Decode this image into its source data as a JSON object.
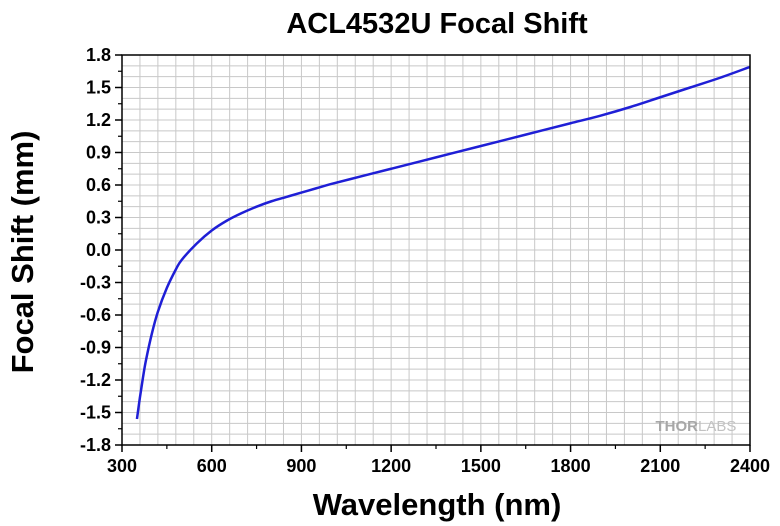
{
  "chart_data": {
    "type": "line",
    "title": "ACL4532U Focal Shift",
    "xlabel": "Wavelength (nm)",
    "ylabel": "Focal Shift (mm)",
    "xlim": [
      300,
      2400
    ],
    "ylim": [
      -1.8,
      1.8
    ],
    "xticks": [
      300,
      600,
      900,
      1200,
      1500,
      1800,
      2100,
      2400
    ],
    "yticks": [
      -1.8,
      -1.5,
      -1.2,
      -0.9,
      -0.6,
      -0.3,
      0.0,
      0.3,
      0.6,
      0.9,
      1.2,
      1.5,
      1.8
    ],
    "ytick_labels": [
      "-1.8",
      "-1.5",
      "-1.2",
      "-0.9",
      "-0.6",
      "-0.3",
      "0.0",
      "0.3",
      "0.6",
      "0.9",
      "1.2",
      "1.5",
      "1.8"
    ],
    "grid": true,
    "line_color": "#1f1fd6",
    "series": [
      {
        "x": [
          350,
          360,
          370,
          380,
          400,
          420,
          450,
          480,
          500,
          550,
          600,
          650,
          700,
          750,
          800,
          850,
          900,
          950,
          1000,
          1100,
          1200,
          1300,
          1400,
          1500,
          1600,
          1700,
          1800,
          1900,
          2000,
          2100,
          2200,
          2300,
          2400
        ],
        "y": [
          -1.56,
          -1.36,
          -1.18,
          -1.02,
          -0.77,
          -0.57,
          -0.35,
          -0.18,
          -0.09,
          0.06,
          0.18,
          0.27,
          0.34,
          0.4,
          0.45,
          0.49,
          0.53,
          0.57,
          0.61,
          0.68,
          0.75,
          0.82,
          0.89,
          0.96,
          1.03,
          1.1,
          1.17,
          1.24,
          1.32,
          1.41,
          1.5,
          1.59,
          1.69
        ]
      }
    ]
  },
  "watermark": {
    "part1": "THOR",
    "part2": "LABS"
  }
}
